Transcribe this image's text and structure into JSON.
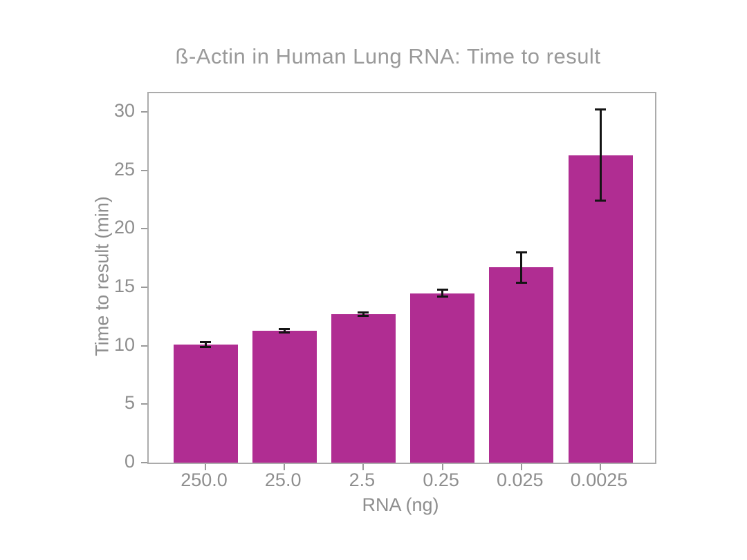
{
  "chart_data": {
    "type": "bar",
    "title": "ß-Actin in Human Lung RNA: Time to result",
    "xlabel": "RNA (ng)",
    "ylabel": "Time to result (min)",
    "categories": [
      "250.0",
      "25.0",
      "2.5",
      "0.25",
      "0.025",
      "0.0025"
    ],
    "values": [
      10.1,
      11.3,
      12.7,
      14.5,
      16.7,
      26.3
    ],
    "errors": [
      0.2,
      0.15,
      0.15,
      0.3,
      1.3,
      3.9
    ],
    "yticks": [
      0,
      5,
      10,
      15,
      20,
      25,
      30
    ],
    "ylim": [
      0,
      31.6
    ],
    "grid": false,
    "legend": "none",
    "colors": {
      "bar": "#B02D92",
      "error_bar": "#141414",
      "spine": "#ababab",
      "tick_mark": "#9a9a9a",
      "tick_text": "#8e8e8e",
      "title_text": "#9a9a9a",
      "background": "#ffffff"
    }
  }
}
